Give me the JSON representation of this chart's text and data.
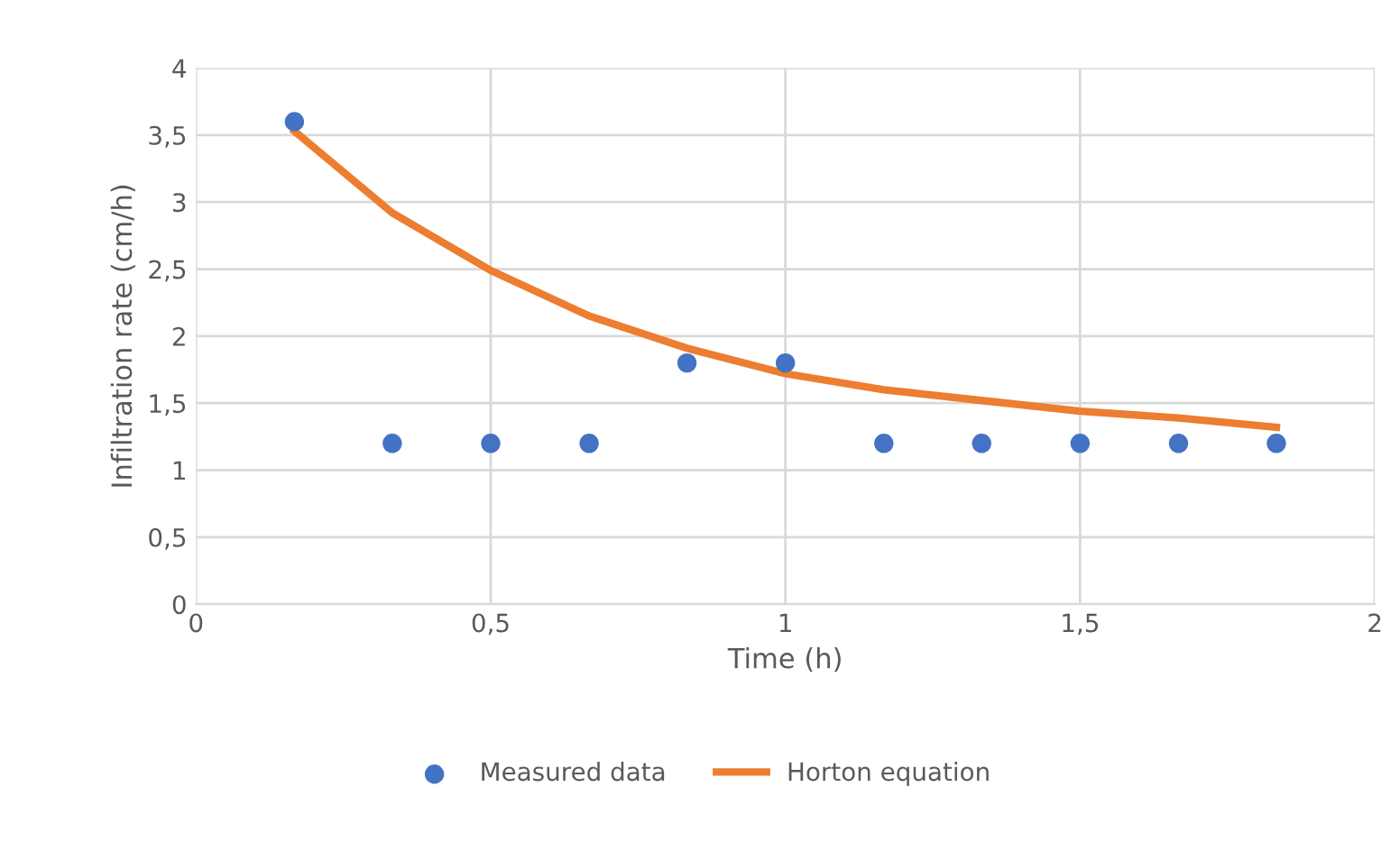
{
  "chart_data": {
    "type": "scatter",
    "xlabel": "Time (h)",
    "ylabel": "Infiltration rate (cm/h)",
    "x": [
      0.167,
      0.333,
      0.5,
      0.667,
      0.833,
      1.0,
      1.167,
      1.333,
      1.5,
      1.667,
      1.833
    ],
    "series": [
      {
        "name": "Measured data",
        "color": "#4472c4",
        "marker": "circle",
        "values": [
          3.6,
          1.2,
          1.2,
          1.2,
          1.8,
          1.8,
          1.2,
          1.2,
          1.2,
          1.2,
          1.2
        ]
      },
      {
        "name": "Horton equation",
        "type": "line",
        "color": "#ed7d31",
        "marker": "none",
        "values": [
          3.53,
          2.92,
          2.49,
          2.15,
          1.91,
          1.72,
          1.6,
          1.52,
          1.44,
          1.39,
          1.32
        ]
      }
    ],
    "xlim": [
      0,
      2
    ],
    "ylim": [
      0,
      4
    ],
    "xticks": [
      0,
      {
        "value": 0.5,
        "label": "0,5"
      },
      1,
      {
        "value": 1.5,
        "label": "1,5"
      },
      2
    ],
    "yticks": [
      0,
      {
        "value": 0.5,
        "label": "0,5"
      },
      1,
      {
        "value": 1.5,
        "label": "1,5"
      },
      2,
      {
        "value": 2.5,
        "label": "2,5"
      },
      3,
      {
        "value": 3.5,
        "label": "3,5"
      },
      4
    ],
    "grid": true,
    "legend": "bottom"
  }
}
